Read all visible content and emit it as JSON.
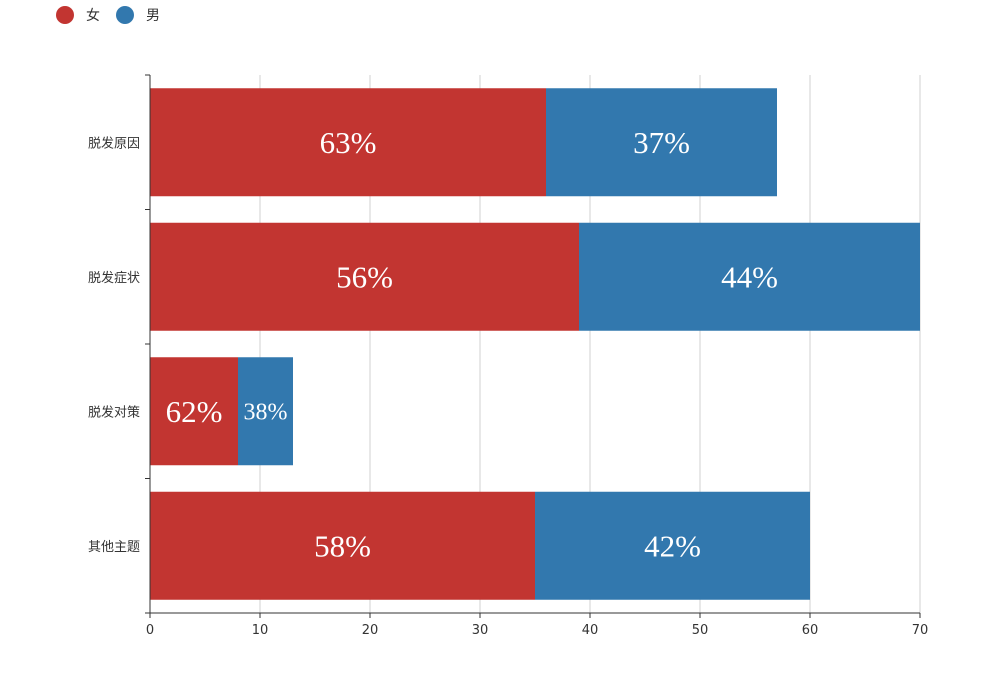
{
  "chart_data": {
    "type": "bar",
    "orientation": "horizontal",
    "stacked": true,
    "categories": [
      "脱发原因",
      "脱发症状",
      "脱发对策",
      "其他主题"
    ],
    "series": [
      {
        "name": "女",
        "color": "#c23531",
        "values": [
          36,
          39,
          8,
          35
        ],
        "labels": [
          "63%",
          "56%",
          "62%",
          "58%"
        ]
      },
      {
        "name": "男",
        "color": "#3278ae",
        "values": [
          21,
          31,
          5,
          25
        ],
        "labels": [
          "37%",
          "44%",
          "38%",
          "42%"
        ]
      }
    ],
    "xlim": [
      0,
      70
    ],
    "xticks": [
      0,
      10,
      20,
      30,
      40,
      50,
      60,
      70
    ],
    "grid": true,
    "legend_position": "top-left",
    "title": "",
    "xlabel": "",
    "ylabel": ""
  }
}
